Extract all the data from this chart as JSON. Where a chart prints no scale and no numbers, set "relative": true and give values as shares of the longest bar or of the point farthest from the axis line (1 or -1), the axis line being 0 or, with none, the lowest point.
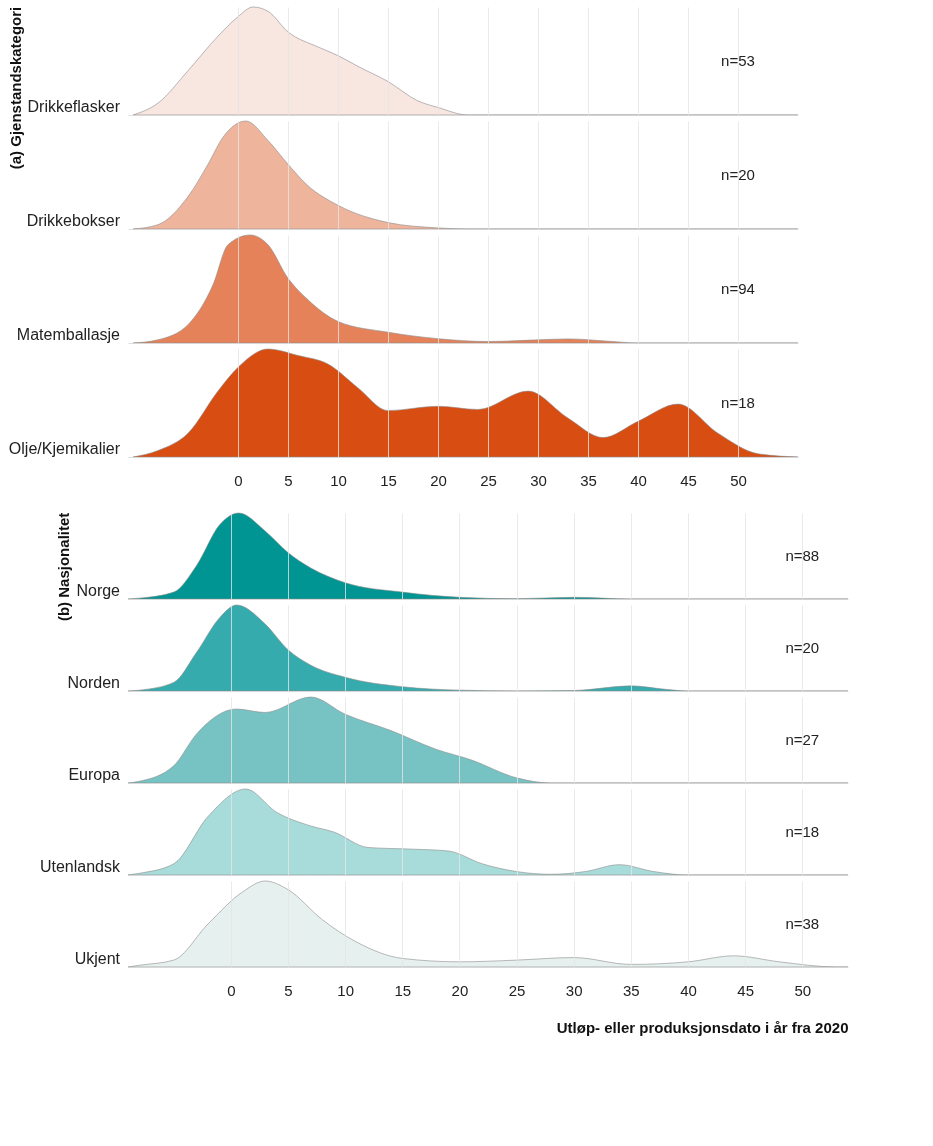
{
  "chart_data": [
    {
      "type": "area",
      "ylabel": "(a)  Gjenstandskategori",
      "relative": true,
      "xlim": [
        -11,
        56
      ],
      "xticks": [
        0,
        5,
        10,
        15,
        20,
        25,
        30,
        35,
        40,
        45,
        50
      ],
      "grid": "x",
      "legend": false,
      "tick_labels": false,
      "series": [
        {
          "name": "Drikkeflasker",
          "color": "#f8e6e0",
          "x": [
            -10.5,
            -8,
            -5,
            -2,
            0,
            1.5,
            3,
            5,
            8,
            10,
            12,
            15,
            18,
            20,
            23,
            56
          ],
          "values": [
            0,
            0.11,
            0.41,
            0.73,
            0.91,
            1,
            0.96,
            0.77,
            0.63,
            0.55,
            0.45,
            0.31,
            0.13,
            0.07,
            0,
            0
          ]
        }
      ],
      "annotations": [
        "n=53"
      ]
    },
    {
      "type": "area",
      "relative": true,
      "xlim": [
        -11,
        56
      ],
      "xticks": [
        0,
        5,
        10,
        15,
        20,
        25,
        30,
        35,
        40,
        45,
        50
      ],
      "grid": "x",
      "legend": false,
      "tick_labels": false,
      "series": [
        {
          "name": "Drikkebokser",
          "color": "#efb49c",
          "x": [
            -10.5,
            -8,
            -5,
            -3,
            -1.5,
            0.8,
            3,
            5,
            7,
            10,
            15,
            20,
            23,
            56
          ],
          "values": [
            0,
            0.04,
            0.3,
            0.6,
            0.85,
            1,
            0.82,
            0.6,
            0.4,
            0.22,
            0.06,
            0.01,
            0,
            0
          ]
        }
      ],
      "annotations": [
        "n=20"
      ]
    },
    {
      "type": "area",
      "relative": true,
      "xlim": [
        -11,
        56
      ],
      "xticks": [
        0,
        5,
        10,
        15,
        20,
        25,
        30,
        35,
        40,
        45,
        50
      ],
      "grid": "x",
      "legend": false,
      "tick_labels": false,
      "series": [
        {
          "name": "Matemballasje",
          "color": "#e5825a",
          "x": [
            -10.5,
            -8,
            -5,
            -2.5,
            -1,
            1.2,
            3,
            5,
            7,
            10,
            15,
            20,
            25,
            30,
            33,
            37,
            40,
            56
          ],
          "values": [
            0,
            0.03,
            0.17,
            0.54,
            0.91,
            1,
            0.91,
            0.6,
            0.4,
            0.2,
            0.1,
            0.04,
            0.014,
            0.029,
            0.038,
            0.017,
            0,
            0
          ]
        }
      ],
      "annotations": [
        "n=94"
      ]
    },
    {
      "type": "area",
      "relative": true,
      "xlim": [
        -11,
        56
      ],
      "xticks": [
        0,
        5,
        10,
        15,
        20,
        25,
        30,
        35,
        40,
        45,
        50
      ],
      "grid": "x",
      "legend": false,
      "series": [
        {
          "name": "Olje/Kjemikalier",
          "color": "#d84d12",
          "x": [
            -10.5,
            -8,
            -5,
            -2,
            0,
            3,
            6,
            9,
            12,
            15,
            20,
            24,
            29,
            33,
            36.5,
            40,
            44,
            48,
            52,
            56
          ],
          "values": [
            0,
            0.06,
            0.22,
            0.61,
            0.83,
            1,
            0.94,
            0.86,
            0.64,
            0.43,
            0.47,
            0.44,
            0.61,
            0.36,
            0.18,
            0.33,
            0.49,
            0.22,
            0.03,
            0
          ]
        }
      ],
      "annotations": [
        "n=18"
      ]
    },
    {
      "type": "area",
      "ylabel": "(b)  Nasjonalitet",
      "relative": true,
      "xlim": [
        -9,
        54
      ],
      "xticks": [
        0,
        5,
        10,
        15,
        20,
        25,
        30,
        35,
        40,
        45,
        50
      ],
      "grid": "x",
      "legend": false,
      "tick_labels": false,
      "series": [
        {
          "name": "Norge",
          "color": "#009593",
          "x": [
            -9,
            -8,
            -5,
            -3,
            -1,
            0.7,
            3,
            5,
            7,
            10,
            15,
            20,
            25,
            30,
            35,
            54
          ],
          "values": [
            0,
            0.01,
            0.08,
            0.39,
            0.86,
            1,
            0.79,
            0.54,
            0.36,
            0.19,
            0.08,
            0.02,
            0.003,
            0.02,
            0,
            0
          ]
        }
      ],
      "annotations": [
        "n=88"
      ]
    },
    {
      "type": "area",
      "relative": true,
      "xlim": [
        -9,
        54
      ],
      "xticks": [
        0,
        5,
        10,
        15,
        20,
        25,
        30,
        35,
        40,
        45,
        50
      ],
      "grid": "x",
      "legend": false,
      "tick_labels": false,
      "series": [
        {
          "name": "Norden",
          "color": "#35abad",
          "x": [
            -9,
            -8,
            -5,
            -3,
            -1,
            0.5,
            3,
            5,
            7,
            10,
            15,
            20,
            25,
            30,
            35,
            38,
            40,
            54
          ],
          "values": [
            0,
            0.01,
            0.1,
            0.45,
            0.85,
            1,
            0.78,
            0.48,
            0.3,
            0.16,
            0.05,
            0.01,
            0,
            0.005,
            0.06,
            0.02,
            0,
            0
          ]
        }
      ],
      "annotations": [
        "n=20"
      ]
    },
    {
      "type": "area",
      "relative": true,
      "xlim": [
        -9,
        54
      ],
      "xticks": [
        0,
        5,
        10,
        15,
        20,
        25,
        30,
        35,
        40,
        45,
        50
      ],
      "grid": "x",
      "legend": false,
      "tick_labels": false,
      "series": [
        {
          "name": "Europa",
          "color": "#77c3c4",
          "x": [
            -9,
            -8,
            -5,
            -3,
            0.5,
            3,
            7,
            10,
            14,
            18,
            21,
            25,
            28,
            54
          ],
          "values": [
            0,
            0.02,
            0.2,
            0.57,
            0.86,
            0.82,
            1,
            0.8,
            0.61,
            0.39,
            0.27,
            0.06,
            0,
            0
          ]
        }
      ],
      "annotations": [
        "n=27"
      ]
    },
    {
      "type": "area",
      "relative": true,
      "xlim": [
        -9,
        54
      ],
      "xticks": [
        0,
        5,
        10,
        15,
        20,
        25,
        30,
        35,
        40,
        45,
        50
      ],
      "grid": "x",
      "legend": false,
      "tick_labels": false,
      "series": [
        {
          "name": "Utenlandsk",
          "color": "#a8dcda",
          "x": [
            -9,
            -8,
            -5,
            -2,
            1.3,
            4,
            7,
            9,
            12,
            16,
            19,
            22,
            25,
            28,
            31,
            34,
            37,
            40,
            54
          ],
          "values": [
            0,
            0.02,
            0.13,
            0.68,
            1,
            0.73,
            0.57,
            0.5,
            0.32,
            0.3,
            0.28,
            0.13,
            0.04,
            0.008,
            0.04,
            0.12,
            0.04,
            0,
            0
          ]
        }
      ],
      "annotations": [
        "n=18"
      ]
    },
    {
      "type": "area",
      "xlabel": "Utløp- eller produksjonsdato i år fra 2020",
      "relative": true,
      "xlim": [
        -9,
        54
      ],
      "xticks": [
        0,
        5,
        10,
        15,
        20,
        25,
        30,
        35,
        40,
        45,
        50
      ],
      "grid": "x",
      "legend": false,
      "series": [
        {
          "name": "Ukjent",
          "color": "#e6f1ef",
          "x": [
            -9,
            -8,
            -5,
            -2,
            1,
            3,
            5,
            8,
            11,
            15,
            20,
            25,
            30,
            35,
            40,
            44,
            48,
            53,
            54
          ],
          "values": [
            0,
            0.02,
            0.08,
            0.5,
            0.87,
            1,
            0.9,
            0.55,
            0.29,
            0.1,
            0.06,
            0.08,
            0.11,
            0.03,
            0.06,
            0.13,
            0.06,
            0,
            0
          ]
        }
      ],
      "annotations": [
        "n=38"
      ]
    }
  ]
}
